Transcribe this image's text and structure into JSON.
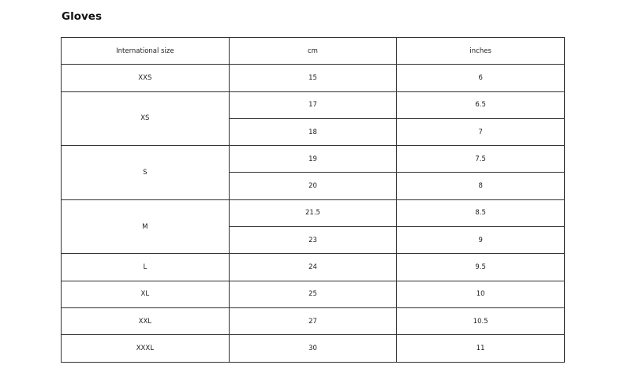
{
  "title": "Gloves",
  "headers": [
    "International size",
    "cm",
    "inches"
  ],
  "groups": [
    {
      "size": "XXS",
      "rows": [
        [
          "15",
          "6"
        ]
      ]
    },
    {
      "size": "XS",
      "rows": [
        [
          "17",
          "6.5"
        ],
        [
          "18",
          "7"
        ]
      ]
    },
    {
      "size": "S",
      "rows": [
        [
          "19",
          "7.5"
        ],
        [
          "20",
          "8"
        ]
      ]
    },
    {
      "size": "M",
      "rows": [
        [
          "21.5",
          "8.5"
        ],
        [
          "23",
          "9"
        ]
      ]
    },
    {
      "size": "L",
      "rows": [
        [
          "24",
          "9.5"
        ]
      ]
    },
    {
      "size": "XL",
      "rows": [
        [
          "25",
          "10"
        ]
      ]
    },
    {
      "size": "XXL",
      "rows": [
        [
          "27",
          "10.5"
        ]
      ]
    },
    {
      "size": "XXXL",
      "rows": [
        [
          "30",
          "11"
        ]
      ]
    }
  ]
}
